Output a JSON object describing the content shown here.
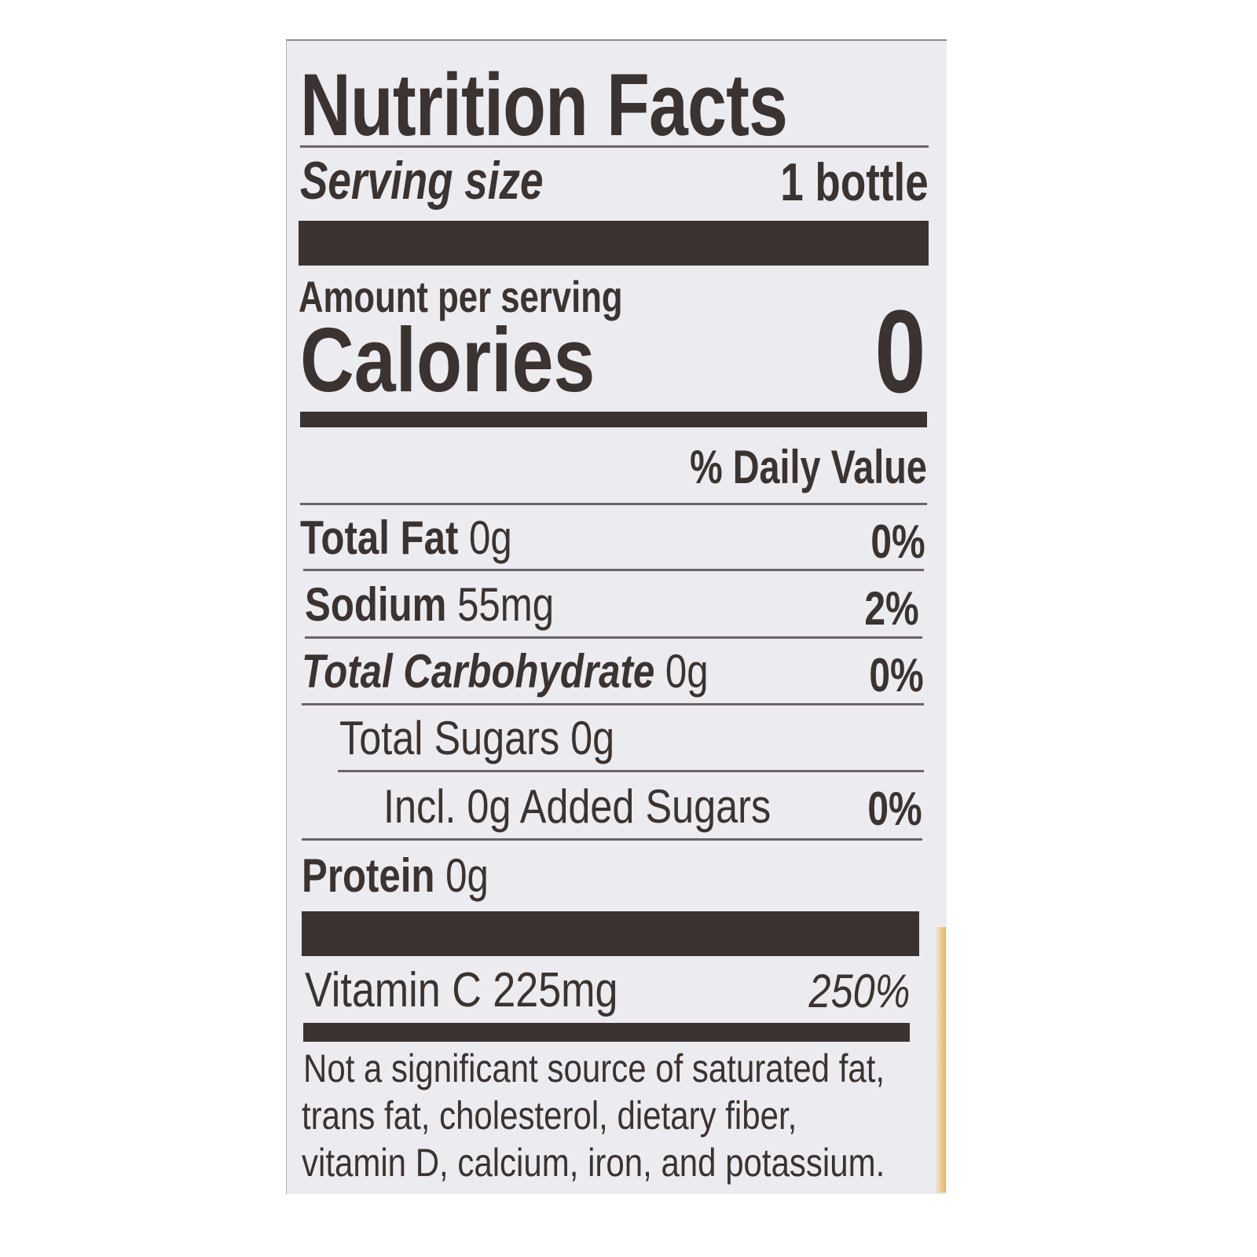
{
  "label": {
    "title": "Nutrition Facts",
    "serving_size_label": "Serving size",
    "serving_size_value": "1 bottle",
    "amount_per_serving": "Amount per serving",
    "calories_label": "Calories",
    "calories_value": "0",
    "daily_value_header": "% Daily Value",
    "rows": [
      {
        "name": "Total Fat",
        "amount": "0g",
        "dv": "0%"
      },
      {
        "name": "Sodium",
        "amount": "55mg",
        "dv": "2%"
      },
      {
        "name": "Total Carbohydrate",
        "amount": "0g",
        "dv": "0%"
      },
      {
        "name": "Total Sugars 0g"
      },
      {
        "name": "Incl. 0g Added Sugars",
        "dv": "0%"
      },
      {
        "name": "Protein",
        "amount": "0g"
      }
    ],
    "vitamin": {
      "name": "Vitamin C 225mg",
      "dv": "250%"
    },
    "footnote": [
      "Not a significant source of saturated fat,",
      "trans fat, cholesterol, dietary fiber,",
      "vitamin D, calcium, iron, and potassium."
    ],
    "colors": {
      "ink": "#3b3331",
      "background": "#ecebf0",
      "bottle_edge": "#e8b45a"
    }
  }
}
